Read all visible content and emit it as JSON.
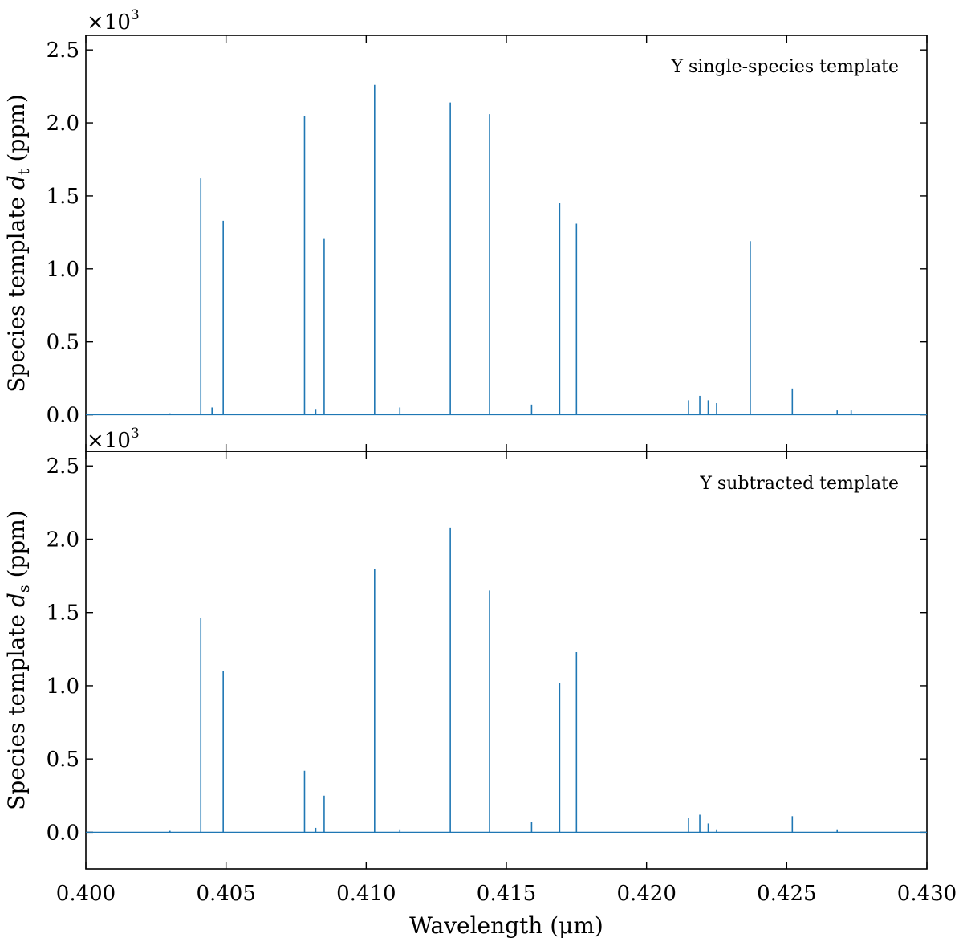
{
  "figure": {
    "xlabel": "Wavelength (μm)",
    "xlim": [
      0.4,
      0.43
    ],
    "x_ticks": [
      0.4,
      0.405,
      0.41,
      0.415,
      0.42,
      0.425,
      0.43
    ],
    "x_tick_labels": [
      "0.400",
      "0.405",
      "0.410",
      "0.415",
      "0.420",
      "0.425",
      "0.430"
    ],
    "line_color": "#1f77b4"
  },
  "chart_data": [
    {
      "type": "line",
      "annotation": "Y single-species template",
      "ylabel_main": "Species template ",
      "ylabel_var": "d",
      "ylabel_sub": "t",
      "ylabel_unit": " (ppm)",
      "y_multiplier_base": "×10",
      "y_multiplier_exp": "3",
      "ylim": [
        -0.25,
        2.6
      ],
      "y_ticks": [
        0.0,
        0.5,
        1.0,
        1.5,
        2.0,
        2.5
      ],
      "y_tick_labels": [
        "0.0",
        "0.5",
        "1.0",
        "1.5",
        "2.0",
        "2.5"
      ],
      "series": [
        {
          "x": [
            0.403,
            0.4041,
            0.4045,
            0.4049,
            0.4078,
            0.4082,
            0.4085,
            0.4103,
            0.4112,
            0.413,
            0.4144,
            0.4159,
            0.4169,
            0.4175,
            0.4215,
            0.4219,
            0.4222,
            0.4225,
            0.4237,
            0.4252,
            0.4268,
            0.4273
          ],
          "y": [
            0.01,
            1.62,
            0.05,
            1.33,
            2.05,
            0.04,
            1.21,
            2.26,
            0.05,
            2.14,
            2.06,
            0.07,
            1.45,
            1.31,
            0.1,
            0.13,
            0.1,
            0.08,
            1.19,
            0.18,
            0.03,
            0.03
          ]
        }
      ]
    },
    {
      "type": "line",
      "annotation": "Y subtracted template",
      "ylabel_main": "Species template ",
      "ylabel_var": "d",
      "ylabel_sub": "s",
      "ylabel_unit": " (ppm)",
      "y_multiplier_base": "×10",
      "y_multiplier_exp": "3",
      "ylim": [
        -0.25,
        2.6
      ],
      "y_ticks": [
        0.0,
        0.5,
        1.0,
        1.5,
        2.0,
        2.5
      ],
      "y_tick_labels": [
        "0.0",
        "0.5",
        "1.0",
        "1.5",
        "2.0",
        "2.5"
      ],
      "series": [
        {
          "x": [
            0.403,
            0.4041,
            0.4049,
            0.4078,
            0.4082,
            0.4085,
            0.4103,
            0.4112,
            0.413,
            0.4144,
            0.4159,
            0.4169,
            0.4175,
            0.4215,
            0.4219,
            0.4222,
            0.4225,
            0.4252,
            0.4268
          ],
          "y": [
            0.01,
            1.46,
            1.1,
            0.42,
            0.03,
            0.25,
            1.8,
            0.02,
            2.08,
            1.65,
            0.07,
            1.02,
            1.23,
            0.1,
            0.12,
            0.06,
            0.02,
            0.11,
            0.02
          ]
        }
      ]
    }
  ]
}
